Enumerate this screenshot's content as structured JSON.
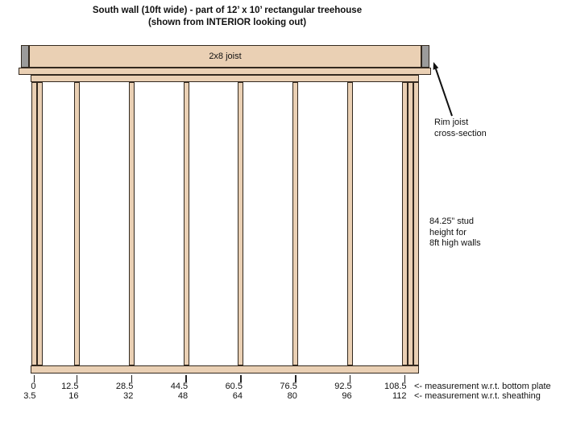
{
  "title": {
    "line1": "South wall (10ft wide) - part of 12’ x 10’ rectangular treehouse",
    "line2": "(shown from INTERIOR looking out)"
  },
  "joist": {
    "label": "2x8 joist"
  },
  "annotations": {
    "rim_joist": {
      "line1": "Rim joist",
      "line2": "cross-section"
    },
    "stud_height": {
      "line1": "84.25” stud",
      "line2": "height for",
      "line3": "8ft high walls"
    }
  },
  "measurements": {
    "bottom_plate": {
      "values": [
        "0",
        "12.5",
        "28.5",
        "44.5",
        "60.5",
        "76.5",
        "92.5",
        "108.5"
      ],
      "label": "<- measurement w.r.t. bottom plate"
    },
    "sheathing": {
      "values": [
        "3.5",
        "16",
        "32",
        "48",
        "64",
        "80",
        "96",
        "112"
      ],
      "label": "<- measurement w.r.t. sheathing"
    }
  },
  "structure": {
    "stud_count_visible": 11,
    "left_corner_studs": 2,
    "right_corner_studs": 3,
    "stud_spacing_inches": 16
  },
  "colors": {
    "wood": "#ead0b4",
    "outline": "#33291f",
    "rim_gray": "#9b9b9b",
    "text": "#111111"
  }
}
